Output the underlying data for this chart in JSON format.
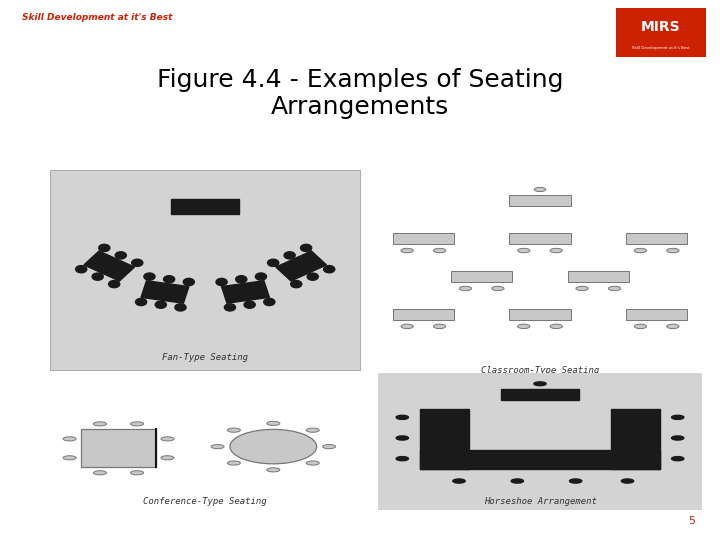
{
  "title": "Figure 4.4 - Examples of Seating\nArrangements",
  "header_text": "Skill Development at it's Best",
  "header_color": "#cc2200",
  "title_color": "#000000",
  "title_fontsize": 18,
  "bg_color": "#ffffff",
  "panel_bg": "#d3d3d3",
  "panel_bg2": "#e8e8e8",
  "dark": "#1a1a1a",
  "gray_rect": "#c8c8c8",
  "quad_labels": [
    "Fan-Type Seating",
    "Classroom-Type Seating",
    "Conference-Type Seating",
    "Horseshoe Arrangement"
  ]
}
